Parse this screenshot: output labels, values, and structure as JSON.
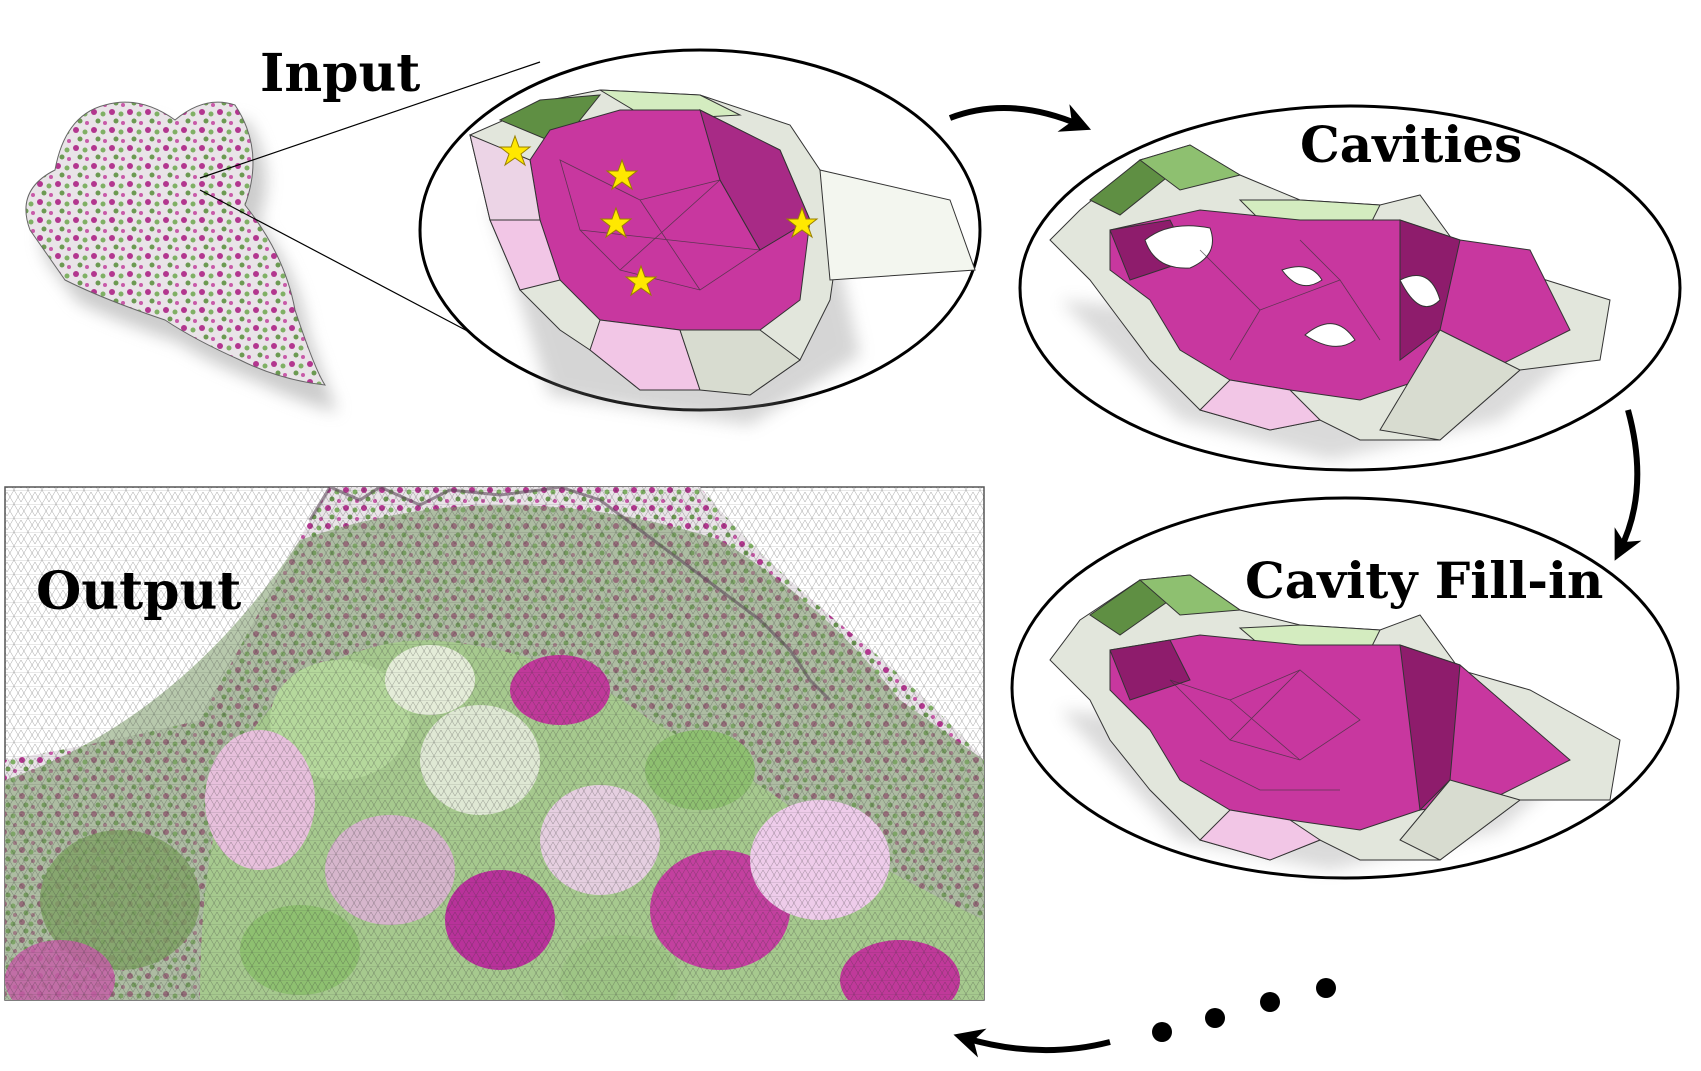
{
  "labels": {
    "input": "Input",
    "cavities": "Cavities",
    "cavity_fill_in": "Cavity Fill-in",
    "output": "Output"
  },
  "colors": {
    "magenta": "#c8379f",
    "dark_magenta": "#8e1c6c",
    "light_pink": "#f2c6e6",
    "green": "#8ec070",
    "dark_green": "#5f8f43",
    "light_green": "#d4ecc0",
    "pale_gray": "#e2e6dc",
    "star_yellow": "#ffe800",
    "outline": "#000000"
  },
  "icons": [
    "star-marker-icon",
    "flow-arrow-icon",
    "ellipsis-dots-icon"
  ]
}
